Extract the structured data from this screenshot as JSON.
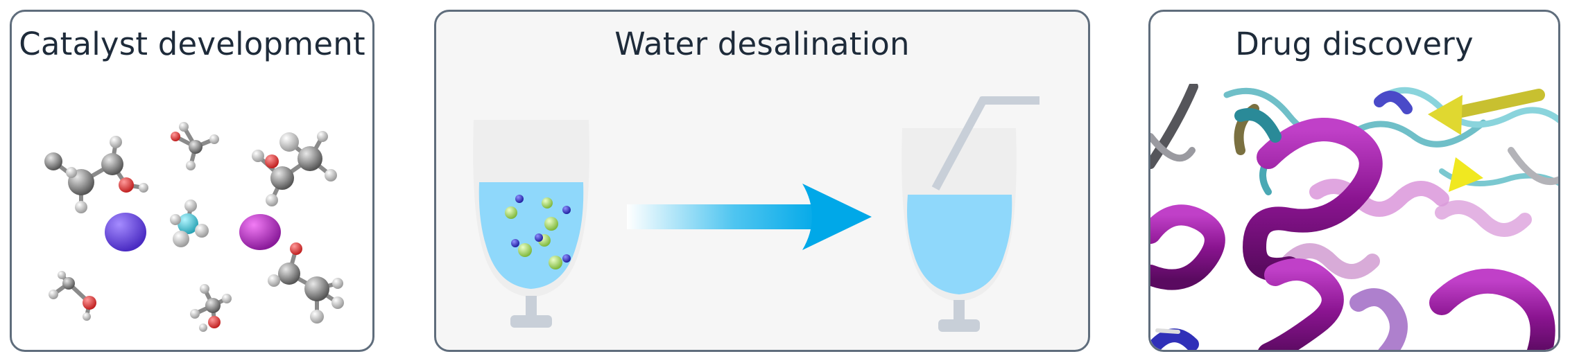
{
  "panels": [
    {
      "title": "Catalyst development"
    },
    {
      "title": "Water desalination"
    },
    {
      "title": "Drug discovery"
    }
  ]
}
